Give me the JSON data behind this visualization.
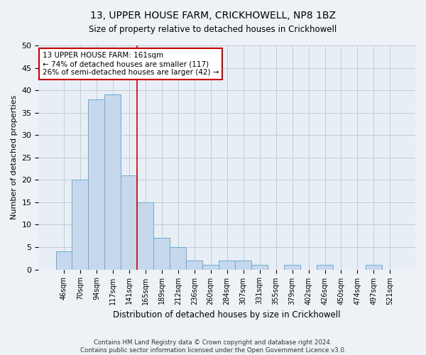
{
  "title": "13, UPPER HOUSE FARM, CRICKHOWELL, NP8 1BZ",
  "subtitle": "Size of property relative to detached houses in Crickhowell",
  "xlabel": "Distribution of detached houses by size in Crickhowell",
  "ylabel": "Number of detached properties",
  "bar_labels": [
    "46sqm",
    "70sqm",
    "94sqm",
    "117sqm",
    "141sqm",
    "165sqm",
    "189sqm",
    "212sqm",
    "236sqm",
    "260sqm",
    "284sqm",
    "307sqm",
    "331sqm",
    "355sqm",
    "379sqm",
    "402sqm",
    "426sqm",
    "450sqm",
    "474sqm",
    "497sqm",
    "521sqm"
  ],
  "bar_values": [
    4,
    20,
    38,
    39,
    21,
    15,
    7,
    5,
    2,
    1,
    2,
    2,
    1,
    0,
    1,
    0,
    1,
    0,
    0,
    1,
    0
  ],
  "bar_color": "#c6d9ec",
  "bar_edgecolor": "#6aaad4",
  "vline_color": "#cc0000",
  "vline_x_index": 4.5,
  "ylim": [
    0,
    50
  ],
  "yticks": [
    0,
    5,
    10,
    15,
    20,
    25,
    30,
    35,
    40,
    45,
    50
  ],
  "annotation_text_line1": "13 UPPER HOUSE FARM: 161sqm",
  "annotation_text_line2": "← 74% of detached houses are smaller (117)",
  "annotation_text_line3": "26% of semi-detached houses are larger (42) →",
  "annotation_box_edgecolor": "#cc0000",
  "footer_line1": "Contains HM Land Registry data © Crown copyright and database right 2024.",
  "footer_line2": "Contains public sector information licensed under the Open Government Licence v3.0.",
  "bg_color": "#eef2f7",
  "plot_bg_color": "#e8eef5",
  "grid_color": "#c0ccda",
  "title_fontsize": 10,
  "subtitle_fontsize": 9
}
